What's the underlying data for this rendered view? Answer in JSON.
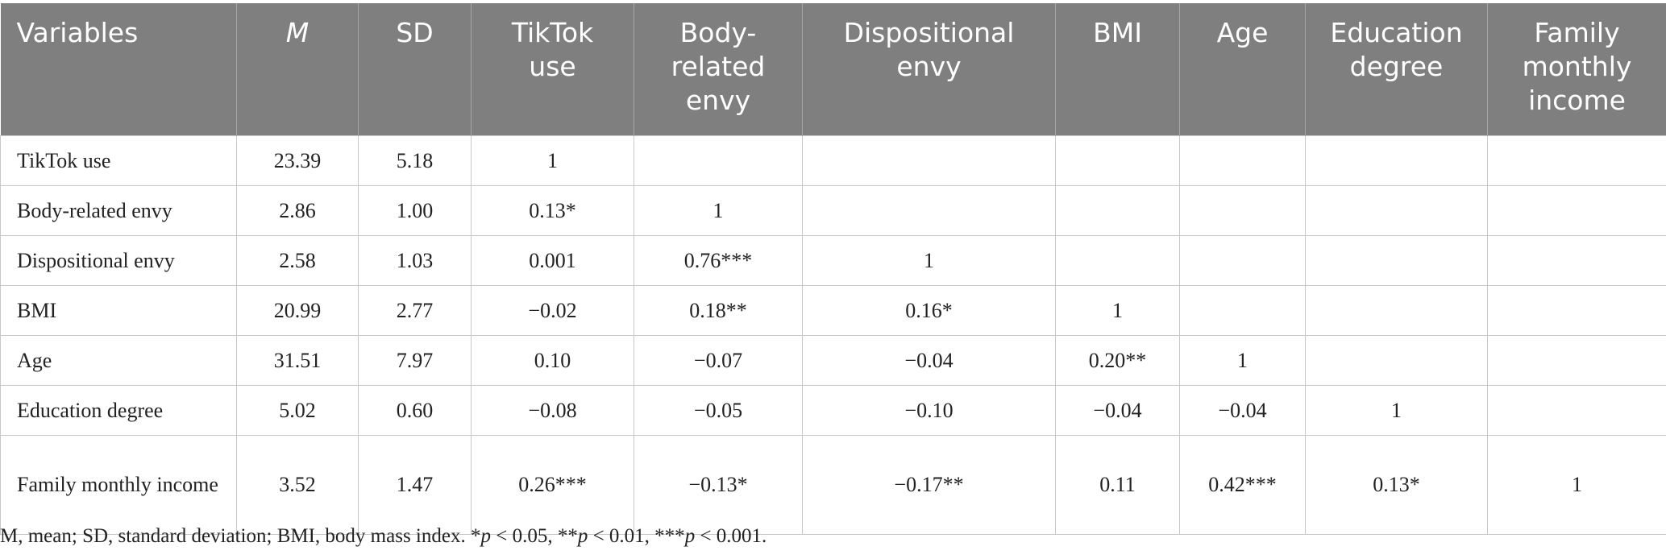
{
  "table": {
    "header": [
      "Variables",
      "M",
      "SD",
      "TikTok use",
      "Body-related envy",
      "Dispositional envy",
      "BMI",
      "Age",
      "Education degree",
      "Family monthly income"
    ],
    "rows": [
      [
        "TikTok use",
        "23.39",
        "5.18",
        "1"
      ],
      [
        "Body-related envy",
        "2.86",
        "1.00",
        "0.13*",
        "1"
      ],
      [
        "Dispositional envy",
        "2.58",
        "1.03",
        "0.001",
        "0.76***",
        "1"
      ],
      [
        "BMI",
        "20.99",
        "2.77",
        "−0.02",
        "0.18**",
        "0.16*",
        "1"
      ],
      [
        "Age",
        "31.51",
        "7.97",
        "0.10",
        "−0.07",
        "−0.04",
        "0.20**",
        "1"
      ],
      [
        "Education degree",
        "5.02",
        "0.60",
        "−0.08",
        "−0.05",
        "−0.10",
        "−0.04",
        "−0.04",
        "1"
      ],
      [
        "Family monthly income",
        "3.52",
        "1.47",
        "0.26***",
        "−0.13*",
        "−0.17**",
        "0.11",
        "0.42***",
        "0.13*",
        "1"
      ]
    ]
  },
  "footnote": [
    "M, mean; SD, standard deviation; BMI, body mass index. *",
    "p",
    " < 0.05, **",
    "p",
    " < 0.01, ***",
    "p",
    " < 0.001."
  ]
}
